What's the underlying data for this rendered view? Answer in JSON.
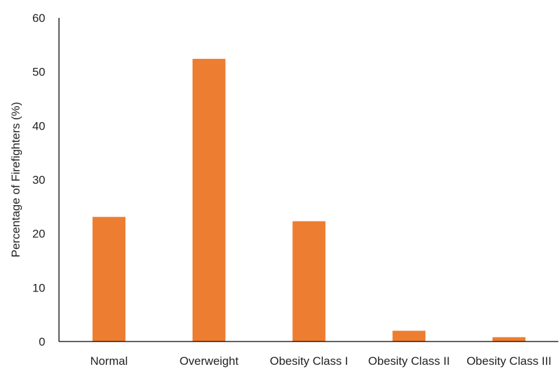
{
  "chart_data": {
    "type": "bar",
    "title": "",
    "xlabel": "",
    "ylabel": "Percentage of Firefighters (%)",
    "categories": [
      "Normal",
      "Overweight",
      "Obesity Class I",
      "Obesity Class II",
      "Obesity Class III"
    ],
    "values": [
      23.1,
      52.4,
      22.3,
      2.0,
      0.8
    ],
    "ylim": [
      0,
      60
    ],
    "yticks": [
      "0",
      "10",
      "20",
      "30",
      "40",
      "50",
      "60"
    ],
    "grid": false,
    "legend": "none",
    "bar_color": "#ED7D31",
    "axis_color": "#000000"
  }
}
